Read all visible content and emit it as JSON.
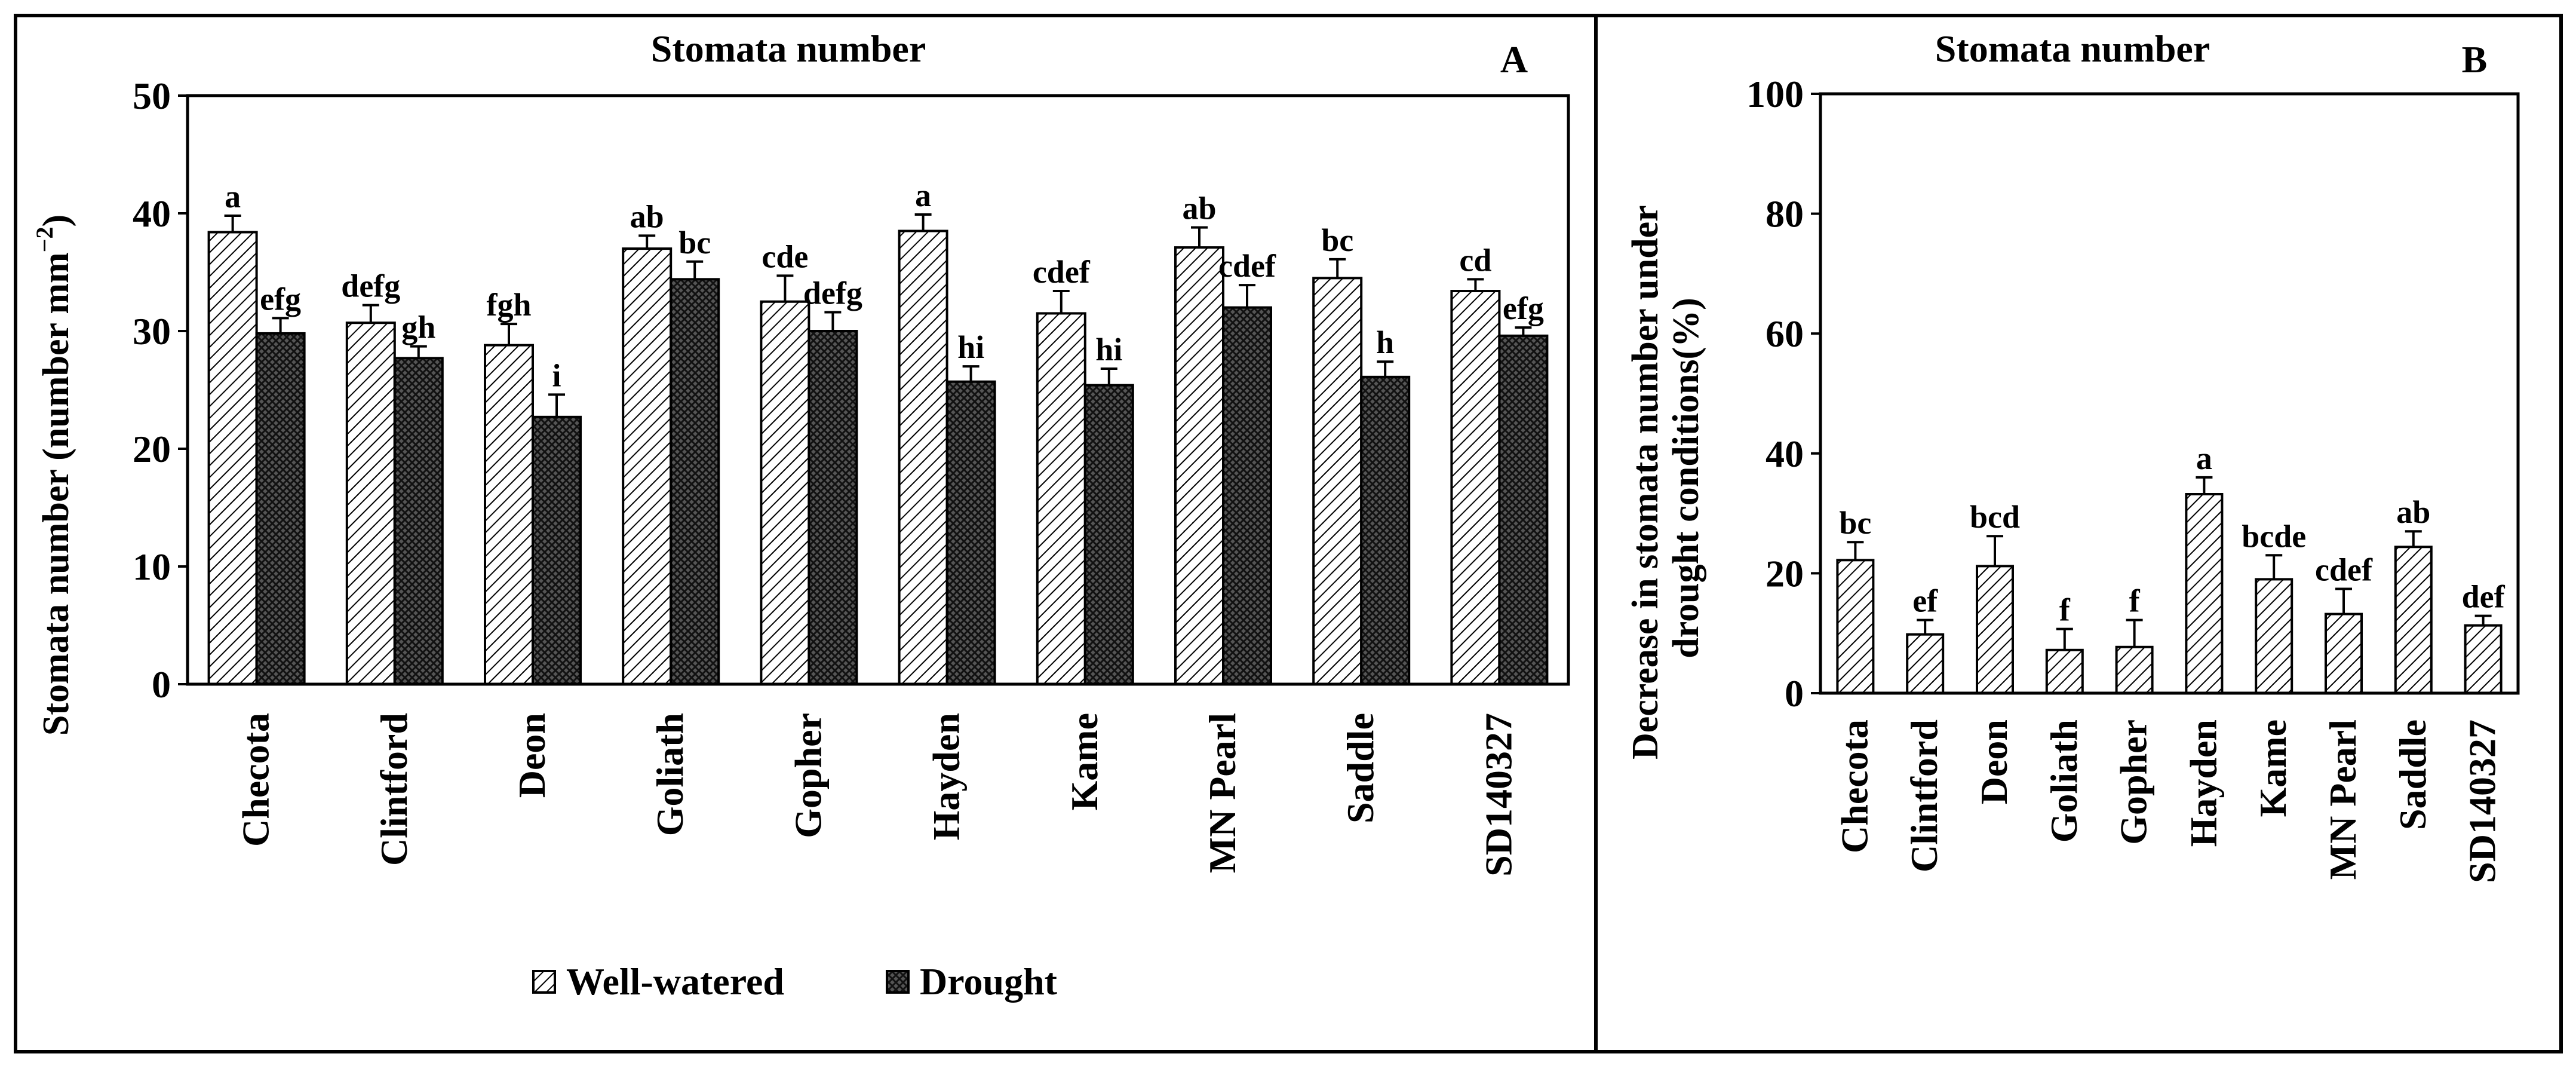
{
  "chart_data": [
    {
      "panel_letter": "A",
      "type": "bar",
      "title": "Stomata number",
      "ylabel": "Stomata number (number mm",
      "ylabel_exp": "−2",
      "ylabel_close": ")",
      "ylim": [
        0,
        50
      ],
      "yticks": [
        0,
        10,
        20,
        30,
        40,
        50
      ],
      "categories": [
        "Checota",
        "Clintford",
        "Deon",
        "Goliath",
        "Gopher",
        "Hayden",
        "Kame",
        "MN Pearl",
        "Saddle",
        "SD140327"
      ],
      "series": [
        {
          "name": "Well-watered",
          "pattern": "light",
          "values": [
            38.4,
            30.7,
            28.8,
            37.0,
            32.5,
            38.5,
            31.5,
            37.1,
            34.5,
            33.4
          ],
          "errors": [
            1.4,
            1.5,
            1.8,
            1.1,
            2.2,
            1.4,
            1.9,
            1.7,
            1.6,
            1.0
          ],
          "letters": [
            "a",
            "defg",
            "fgh",
            "ab",
            "cde",
            "a",
            "cdef",
            "ab",
            "bc",
            "cd"
          ]
        },
        {
          "name": "Drought",
          "pattern": "dark",
          "values": [
            29.8,
            27.7,
            22.7,
            34.4,
            30.0,
            25.7,
            25.4,
            32.0,
            26.1,
            29.6
          ],
          "errors": [
            1.3,
            1.0,
            1.9,
            1.5,
            1.6,
            1.3,
            1.4,
            1.9,
            1.3,
            0.7
          ],
          "letters": [
            "efg",
            "gh",
            "i",
            "bc",
            "defg",
            "hi",
            "hi",
            "cdef",
            "h",
            "efg"
          ]
        }
      ],
      "legend": [
        "Well-watered",
        "Drought"
      ]
    },
    {
      "panel_letter": "B",
      "type": "bar",
      "title": "Stomata number",
      "ylabel_line1": "Decrease in stomata number under",
      "ylabel_line2": "drought conditions(%)",
      "ylim": [
        0,
        100
      ],
      "yticks": [
        0,
        20,
        40,
        60,
        80,
        100
      ],
      "categories": [
        "Checota",
        "Clintford",
        "Deon",
        "Goliath",
        "Gopher",
        "Hayden",
        "Kame",
        "MN Pearl",
        "Saddle",
        "SD140327"
      ],
      "series": [
        {
          "name": "Decrease",
          "pattern": "light",
          "values": [
            22.2,
            9.8,
            21.2,
            7.2,
            7.7,
            33.2,
            19.0,
            13.2,
            24.4,
            11.3
          ],
          "errors": [
            3.0,
            2.4,
            5.0,
            3.5,
            4.5,
            2.8,
            4.0,
            4.2,
            2.6,
            1.6
          ],
          "letters": [
            "bc",
            "ef",
            "bcd",
            "f",
            "f",
            "a",
            "bcde",
            "cdef",
            "ab",
            "def"
          ]
        }
      ]
    }
  ]
}
